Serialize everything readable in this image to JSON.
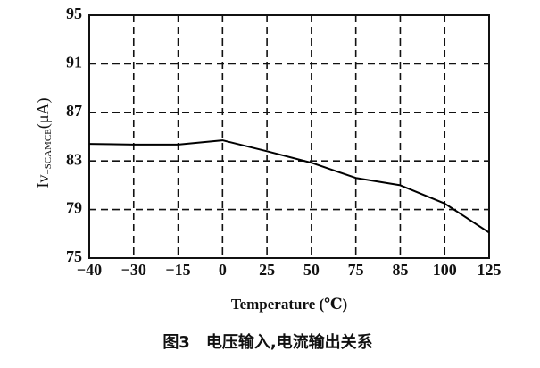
{
  "chart_data": {
    "type": "line",
    "title": "图3　电压输入,电流输出关系",
    "xlabel": "Temperature (℃)",
    "ylabel": {
      "main": "Iv",
      "subscript": "−SCAMCE",
      "unit": "(μA)"
    },
    "categories": [
      "−40",
      "−30",
      "−15",
      "0",
      "25",
      "50",
      "75",
      "85",
      "100",
      "125"
    ],
    "series": [
      {
        "color": "#000000",
        "values": [
          84.4,
          84.35,
          84.35,
          84.7,
          83.8,
          82.85,
          81.6,
          81.0,
          79.5,
          77.1
        ]
      }
    ],
    "ylim": [
      75,
      95
    ],
    "yticks": [
      75,
      79,
      83,
      87,
      91,
      95
    ],
    "grid": true
  }
}
